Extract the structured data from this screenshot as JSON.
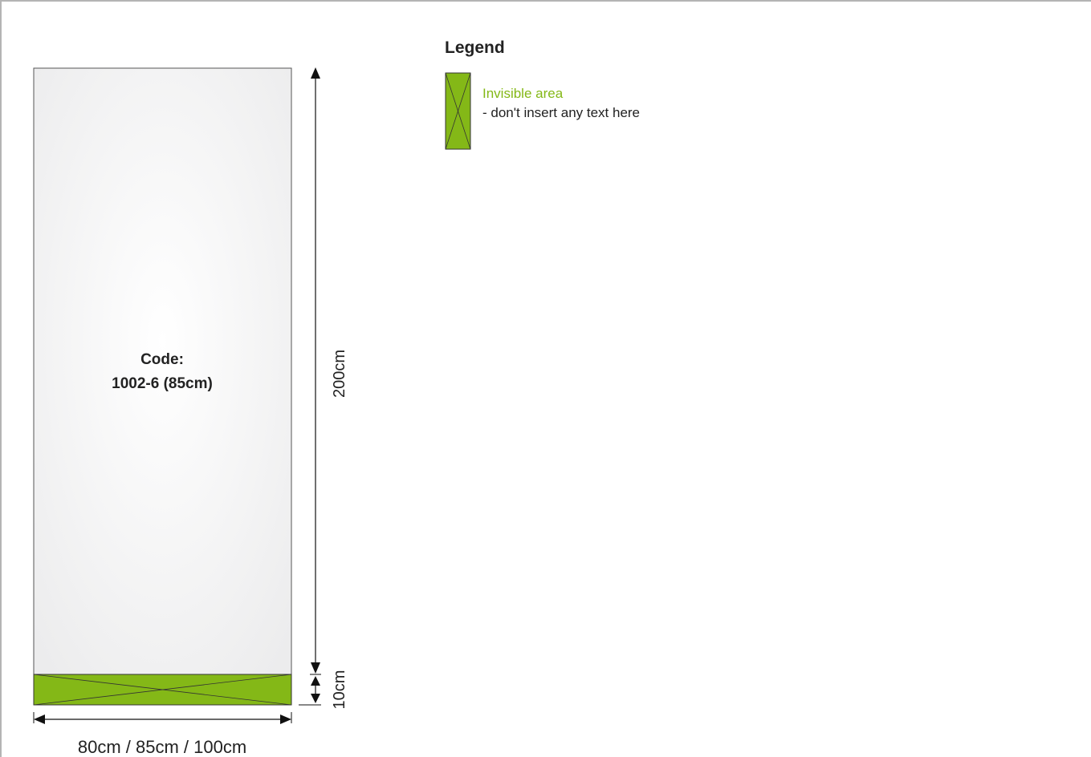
{
  "banner": {
    "code_line1": "Code:",
    "code_line2": "1002-6 (85cm)",
    "height_label": "200cm",
    "base_label": "10cm",
    "width_label": "80cm / 85cm / 100cm"
  },
  "legend": {
    "title": "Legend",
    "item_title": "Invisible area",
    "item_desc": "- don't insert any text here"
  },
  "colors": {
    "invisible_area": "#84b817",
    "panel_fill": "#f4f4f5",
    "outline": "#4a4a4a"
  }
}
